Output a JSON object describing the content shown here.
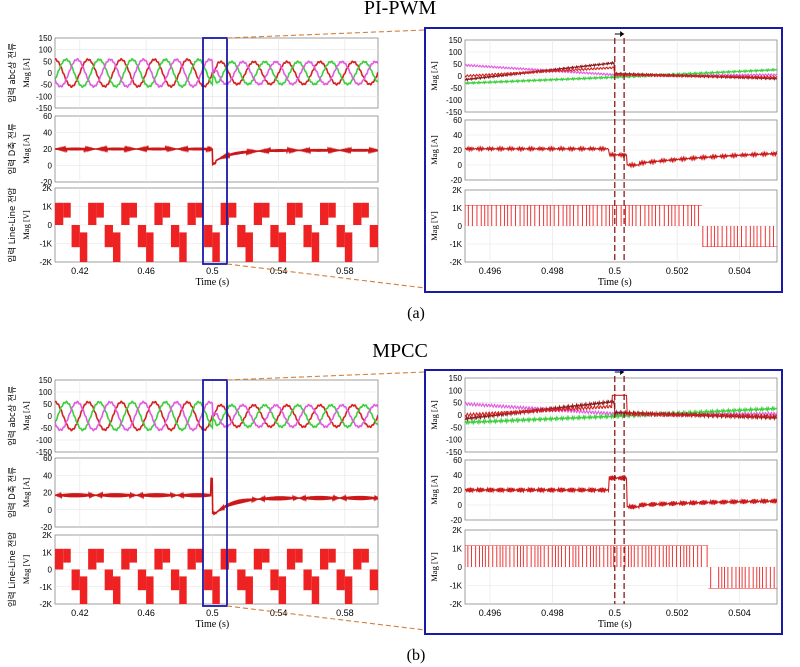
{
  "figure": {
    "panels": [
      {
        "id": "a",
        "title": "PI-PWM",
        "caption": "(a)",
        "left": {
          "xlabel": "Time (s)",
          "xticks": [
            "0.42",
            "0.46",
            "0.5",
            "0.54",
            "0.58"
          ],
          "xrange": [
            0.405,
            0.6
          ],
          "rows": [
            {
              "group": "입력 abc상 전류",
              "unit": "Mag [A]",
              "yticks": [
                "150",
                "100",
                "50",
                "0",
                "-50",
                "-100",
                "-150"
              ],
              "yrange": [
                -150,
                150
              ],
              "type": "abc_current"
            },
            {
              "group": "입력 D축 전류",
              "unit": "Mag [A]",
              "yticks": [
                "60",
                "40",
                "20",
                "0",
                "-20"
              ],
              "yrange": [
                -30,
                70
              ],
              "type": "d_current"
            },
            {
              "group": "입력 Line-Line 전압",
              "unit": "Mag [V]",
              "yticks": [
                "2K",
                "1K",
                "0",
                "-1K",
                "-2K"
              ],
              "yrange": [
                -2000,
                2000
              ],
              "type": "ll_voltage"
            }
          ]
        },
        "right": {
          "xlabel": "Time (s)",
          "xticks": [
            "0.496",
            "0.498",
            "0.5",
            "0.502",
            "0.504"
          ],
          "xrange": [
            0.4952,
            0.5052
          ],
          "rows": [
            {
              "unit": "Mag [A]",
              "yticks": [
                "150",
                "100",
                "50",
                "0",
                "-50",
                "-100",
                "-150"
              ],
              "yrange": [
                -150,
                150
              ],
              "type": "abc_current"
            },
            {
              "unit": "Mag [A]",
              "yticks": [
                "60",
                "40",
                "20",
                "0",
                "-20"
              ],
              "yrange": [
                -30,
                70
              ],
              "type": "d_current"
            },
            {
              "unit": "Mag [V]",
              "yticks": [
                "2K",
                "1K",
                "0",
                "-1K",
                "-2K"
              ],
              "yrange": [
                -2000,
                2000
              ],
              "type": "ll_voltage"
            }
          ]
        }
      },
      {
        "id": "b",
        "title": "MPCC",
        "caption": "(b)",
        "left": {
          "xlabel": "Time (s)",
          "xticks": [
            "0.42",
            "0.46",
            "0.5",
            "0.54",
            "0.58"
          ],
          "xrange": [
            0.405,
            0.6
          ],
          "rows": [
            {
              "group": "입력 abc상 전류",
              "unit": "Mag [A]",
              "yticks": [
                "150",
                "100",
                "50",
                "0",
                "-50",
                "-100",
                "-150"
              ],
              "yrange": [
                -150,
                150
              ],
              "type": "abc_current"
            },
            {
              "group": "입력 D축 전류",
              "unit": "Mag [A]",
              "yticks": [
                "60",
                "40",
                "20",
                "0",
                "-20"
              ],
              "yrange": [
                -30,
                70
              ],
              "type": "d_current"
            },
            {
              "group": "입력 Line-Line 전압",
              "unit": "Mag [V]",
              "yticks": [
                "2K",
                "1K",
                "0",
                "-1K",
                "-2K"
              ],
              "yrange": [
                -2000,
                2000
              ],
              "type": "ll_voltage"
            }
          ]
        },
        "right": {
          "xlabel": "Time (s)",
          "xticks": [
            "0.496",
            "0.498",
            "0.5",
            "0.502",
            "0.504"
          ],
          "xrange": [
            0.4952,
            0.5052
          ],
          "rows": [
            {
              "unit": "Mag [A]",
              "yticks": [
                "150",
                "100",
                "50",
                "0",
                "-50",
                "-100",
                "-150"
              ],
              "yrange": [
                -150,
                150
              ],
              "type": "abc_current"
            },
            {
              "unit": "Mag [A]",
              "yticks": [
                "60",
                "40",
                "20",
                "0",
                "-20"
              ],
              "yrange": [
                -30,
                70
              ],
              "type": "d_current"
            },
            {
              "unit": "Mag [V]",
              "yticks": [
                "2K",
                "1K",
                "0",
                "-1K",
                "-2K"
              ],
              "yrange": [
                -2000,
                2000
              ],
              "type": "ll_voltage"
            }
          ]
        }
      }
    ]
  },
  "colors": {
    "phase_a": "#d62020",
    "phase_b": "#3ccf3c",
    "phase_c": "#e05ce0",
    "phase_dark": "#8b1a1a",
    "d_current": "#cc1818",
    "voltage": "#ee2222",
    "highlight_box": "#1a1aa8",
    "zoom_link": "#d2803c",
    "marker": "#8b1a1a"
  },
  "chart_data": [
    {
      "type": "line",
      "title": "PI-PWM",
      "xlabel": "Time (s)",
      "series": [
        {
          "name": "Mag [A]",
          "x": [
            0.42,
            0.46,
            0.5,
            0.54,
            0.58
          ],
          "values": [
            60,
            60,
            60,
            50,
            50
          ]
        },
        {
          "name": "Mag [A]",
          "x": [
            0.42,
            0.46,
            0.49,
            0.5,
            0.502,
            0.51,
            0.54,
            0.58
          ],
          "values": [
            20,
            20,
            20,
            -5,
            10,
            15,
            18,
            18
          ]
        },
        {
          "name": "Mag [V]",
          "x": [
            0.42,
            0.5,
            0.5028,
            0.505
          ],
          "values": [
            1200,
            1200,
            -1200,
            -1200
          ]
        }
      ],
      "xlim": [
        0.405,
        0.6
      ]
    },
    {
      "type": "line",
      "title": "MPCC",
      "xlabel": "Time (s)",
      "series": [
        {
          "name": "Mag [A]",
          "x": [
            0.42,
            0.46,
            0.5,
            0.54,
            0.58
          ],
          "values": [
            60,
            60,
            60,
            45,
            45
          ]
        },
        {
          "name": "Mag [A]",
          "x": [
            0.42,
            0.46,
            0.499,
            0.5,
            0.501,
            0.51,
            0.54,
            0.58
          ],
          "values": [
            17,
            17,
            40,
            -10,
            -5,
            5,
            12,
            12
          ]
        },
        {
          "name": "Mag [V]",
          "x": [
            0.42,
            0.5,
            0.503,
            0.505
          ],
          "values": [
            1200,
            1200,
            -1200,
            -1200
          ]
        }
      ],
      "xlim": [
        0.405,
        0.6
      ]
    }
  ]
}
